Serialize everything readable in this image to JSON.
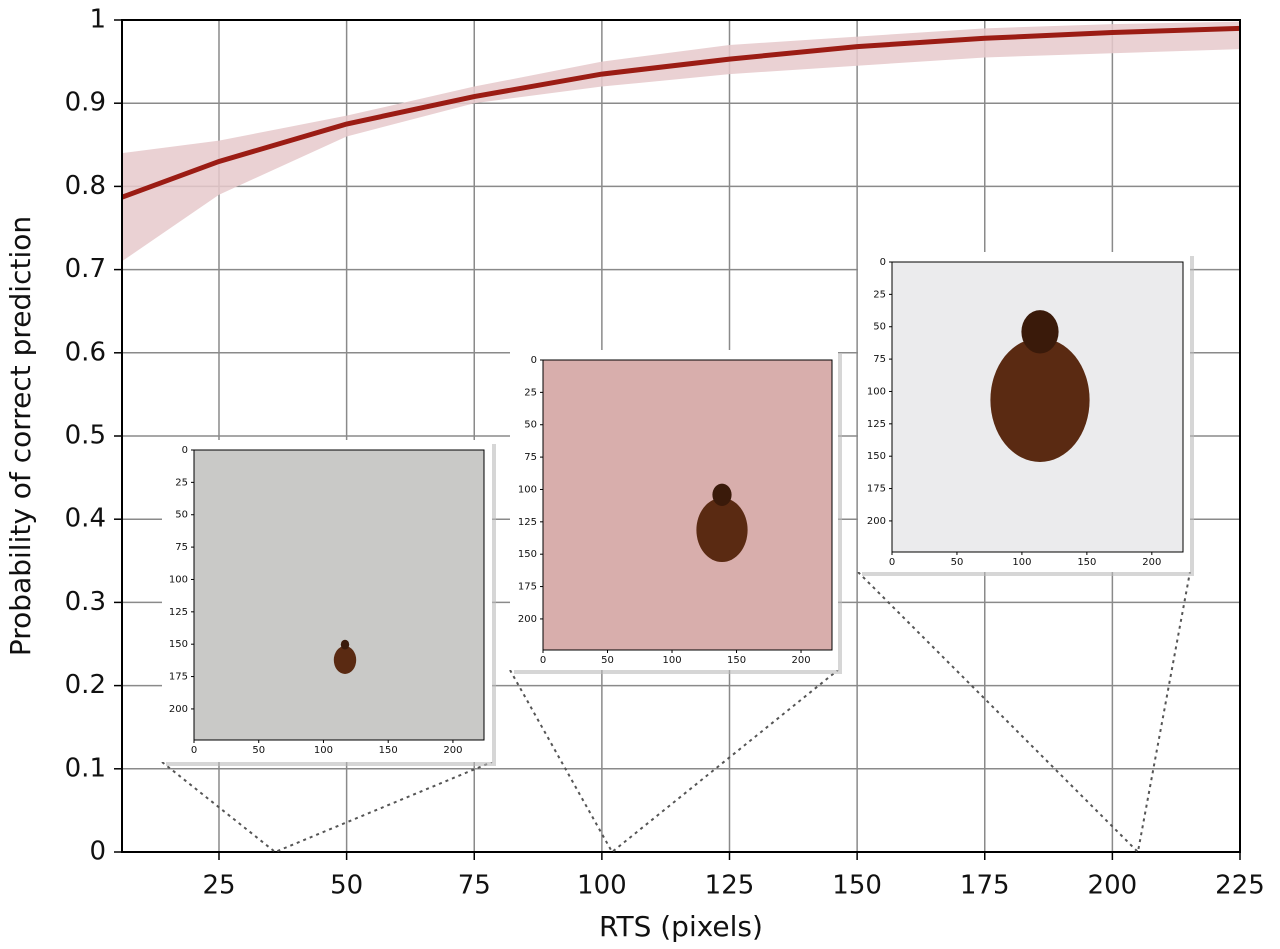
{
  "chart_data": {
    "type": "line",
    "xlabel": "RTS (pixels)",
    "ylabel": "Probability of correct prediction",
    "x": [
      6,
      25,
      50,
      75,
      100,
      125,
      150,
      175,
      200,
      225
    ],
    "series": [
      {
        "color": "#9b1c14",
        "values": [
          0.787,
          0.83,
          0.875,
          0.908,
          0.935,
          0.953,
          0.968,
          0.978,
          0.985,
          0.99
        ]
      }
    ],
    "band": {
      "color": "#e6c9cb",
      "lower": [
        0.71,
        0.79,
        0.86,
        0.9,
        0.92,
        0.935,
        0.945,
        0.955,
        0.96,
        0.965
      ],
      "upper": [
        0.84,
        0.855,
        0.885,
        0.92,
        0.95,
        0.97,
        0.98,
        0.99,
        0.995,
        0.998
      ]
    },
    "xlim": [
      6,
      225
    ],
    "ylim": [
      0,
      1
    ],
    "xticks": [
      25,
      50,
      75,
      100,
      125,
      150,
      175,
      200,
      225
    ],
    "yticks": [
      0,
      0.1,
      0.2,
      0.3,
      0.4,
      0.5,
      0.6,
      0.7,
      0.8,
      0.9,
      1
    ],
    "grid": true,
    "insets": [
      {
        "x": 36,
        "color": "#c9c9c7",
        "xlim": [
          0,
          224
        ],
        "ylim": [
          0,
          224
        ],
        "xticks": [
          0,
          50,
          100,
          150,
          200
        ],
        "yticks": [
          0,
          25,
          50,
          75,
          100,
          125,
          150,
          175,
          200
        ]
      },
      {
        "x": 102,
        "color": "#d8aeac",
        "xlim": [
          0,
          224
        ],
        "ylim": [
          0,
          224
        ],
        "xticks": [
          0,
          50,
          100,
          150,
          200
        ],
        "yticks": [
          0,
          25,
          50,
          75,
          100,
          125,
          150,
          175,
          200
        ]
      },
      {
        "x": 205,
        "color": "#ebebed",
        "xlim": [
          0,
          224
        ],
        "ylim": [
          0,
          224
        ],
        "xticks": [
          0,
          50,
          100,
          150,
          200
        ],
        "yticks": [
          0,
          25,
          50,
          75,
          100,
          125,
          150,
          175,
          200
        ]
      }
    ]
  }
}
